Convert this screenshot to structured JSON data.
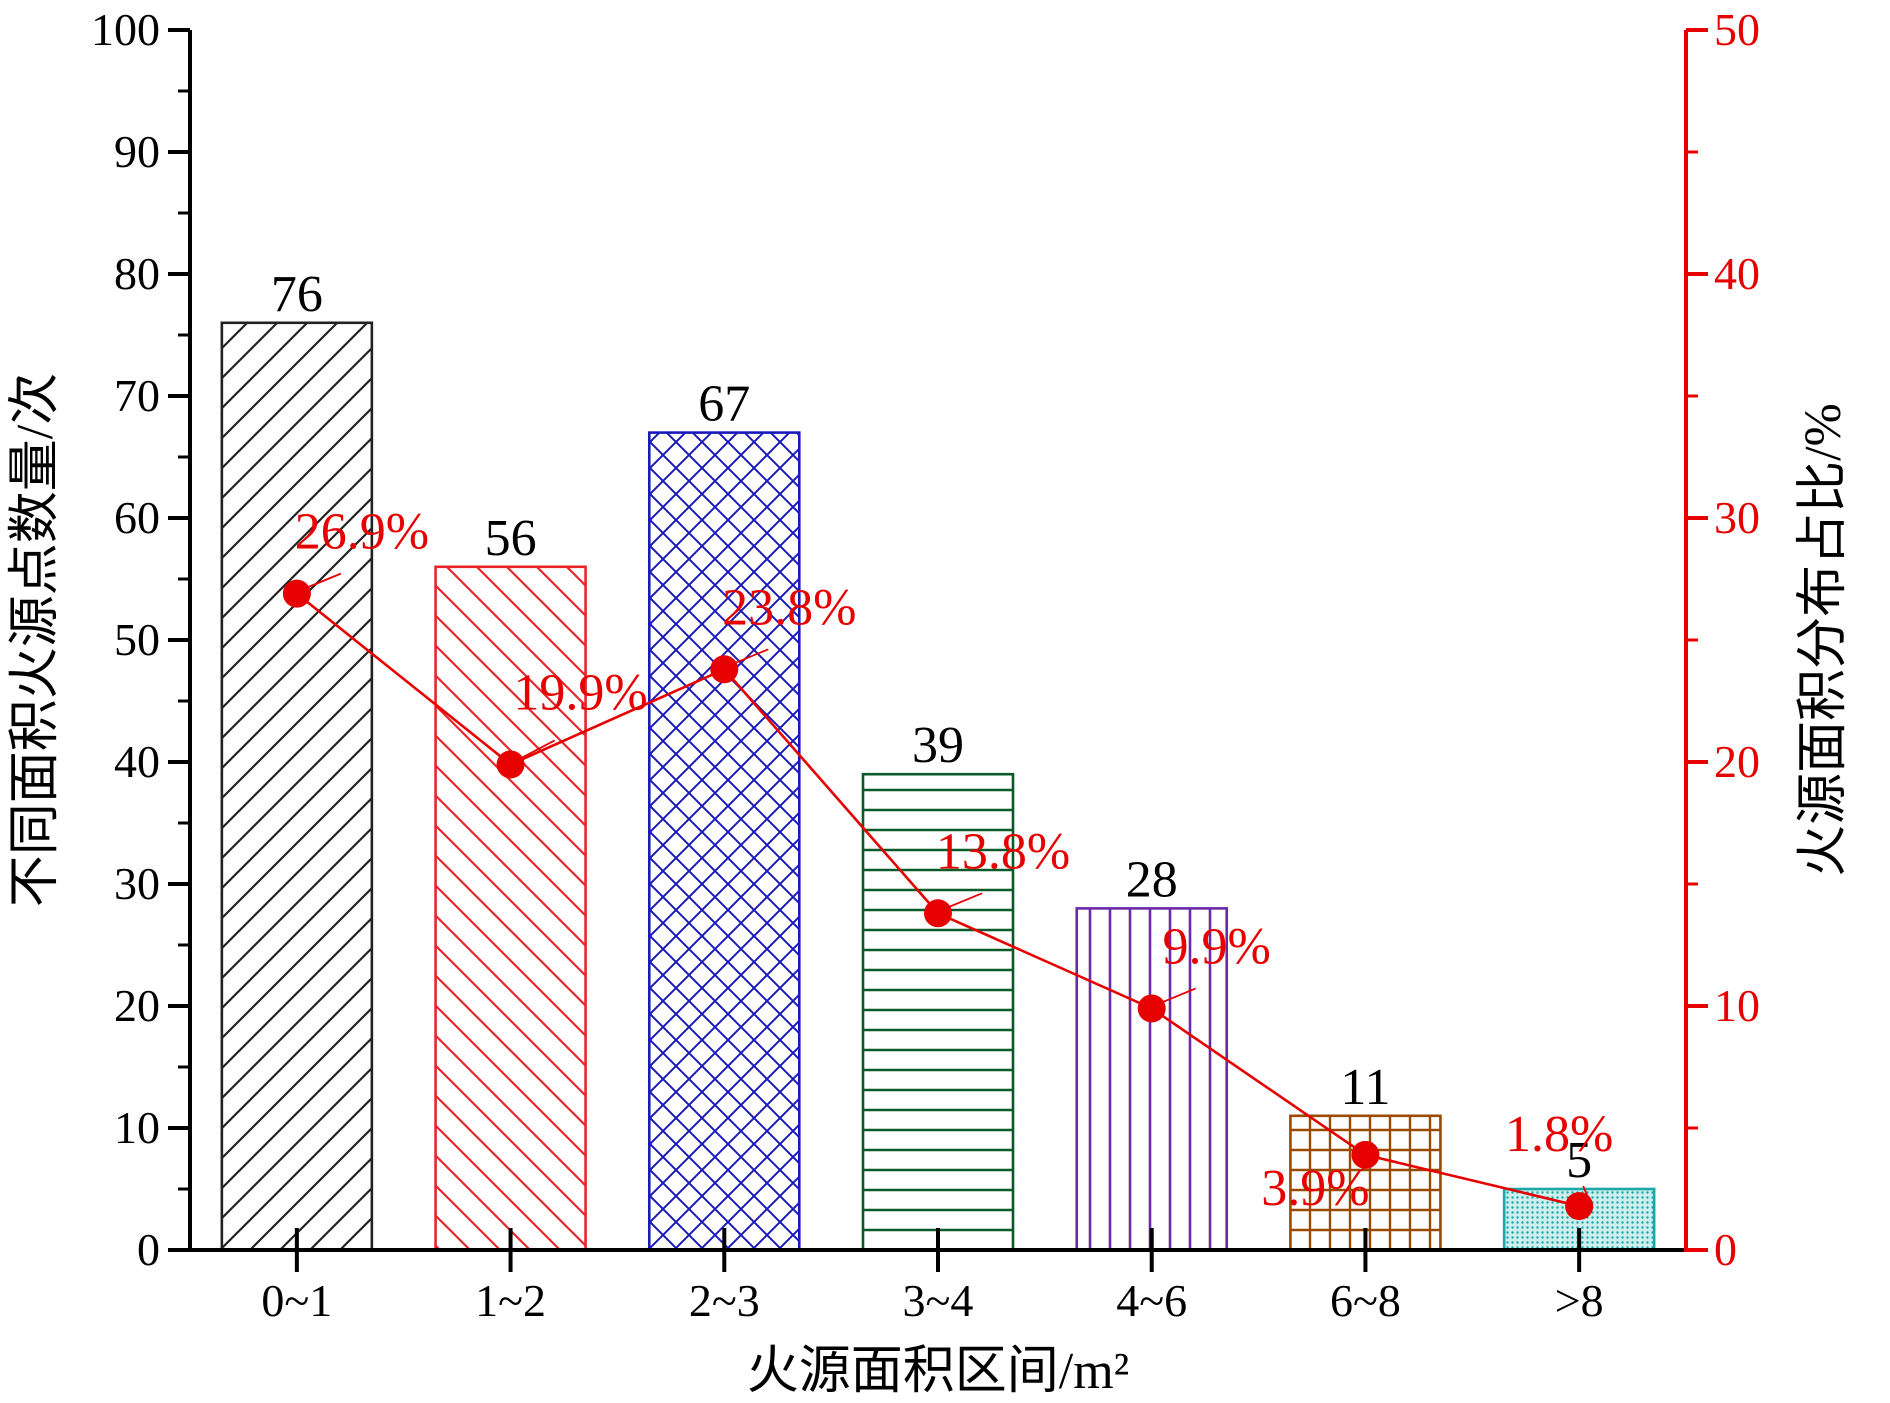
{
  "chart_data": {
    "type": "bar",
    "categories": [
      "0~1",
      "1~2",
      "2~3",
      "3~4",
      "4~6",
      "6~8",
      ">8"
    ],
    "xlabel": "火源面积区间/m²",
    "ylabel": "不同面积火源点数量/次",
    "y2label": "火源面积分布占比/%",
    "ylim": [
      0,
      100
    ],
    "y2lim": [
      0,
      50
    ],
    "yticks": [
      "0",
      "10",
      "20",
      "30",
      "40",
      "50",
      "60",
      "70",
      "80",
      "90",
      "100"
    ],
    "y2ticks": [
      "0",
      "10",
      "20",
      "30",
      "40",
      "50"
    ],
    "grid": false,
    "series": [
      {
        "type": "bar",
        "axis": "left",
        "values": [
          76,
          56,
          67,
          39,
          28,
          11,
          5
        ],
        "value_labels": [
          "76",
          "56",
          "67",
          "39",
          "28",
          "11",
          "5"
        ]
      },
      {
        "type": "line",
        "axis": "right",
        "values": [
          26.9,
          19.9,
          23.8,
          13.8,
          9.9,
          3.9,
          1.8
        ],
        "value_labels": [
          "26.9%",
          "19.9%",
          "23.8%",
          "13.8%",
          "9.9%",
          "3.9%",
          "1.8%"
        ]
      }
    ],
    "colors": {
      "bars": [
        "#222222",
        "#e8262a",
        "#1a1ab8",
        "#0a5a2a",
        "#6a2aa8",
        "#9a4a00",
        "#1aa8a8"
      ],
      "line": "#e60000",
      "right_axis": "#e60000",
      "left_axis": "#000000"
    },
    "patterns": [
      "diagonal-up",
      "diagonal-down",
      "crosshatch-diagonal",
      "horizontal",
      "vertical",
      "grid",
      "dots"
    ]
  }
}
